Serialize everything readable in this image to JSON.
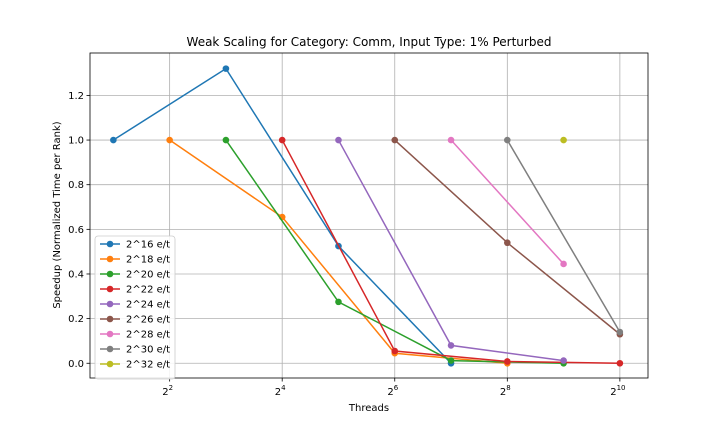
{
  "chart_data": {
    "type": "line",
    "title": "Weak Scaling for Category: Comm, Input Type: 1% Perturbed",
    "xlabel": "Threads",
    "ylabel": "Speedup (Normalized Time per Rank)",
    "x_scale": "log2",
    "xlim": [
      1.5,
      1448
    ],
    "ylim": [
      -0.066,
      1.39
    ],
    "grid": true,
    "legend_position": "lower-left",
    "x_ticks": [
      {
        "value": 4,
        "base": "2",
        "exp": "2"
      },
      {
        "value": 16,
        "base": "2",
        "exp": "4"
      },
      {
        "value": 64,
        "base": "2",
        "exp": "6"
      },
      {
        "value": 256,
        "base": "2",
        "exp": "8"
      },
      {
        "value": 1024,
        "base": "2",
        "exp": "10"
      }
    ],
    "y_ticks": [
      "0.0",
      "0.2",
      "0.4",
      "0.6",
      "0.8",
      "1.0",
      "1.2"
    ],
    "series": [
      {
        "name": "2^16 e/t",
        "color": "#1f77b4",
        "x": [
          2,
          8,
          32,
          128
        ],
        "y": [
          1.0,
          1.32,
          0.525,
          0.0
        ]
      },
      {
        "name": "2^18 e/t",
        "color": "#ff7f0e",
        "x": [
          4,
          16,
          64,
          256
        ],
        "y": [
          1.0,
          0.655,
          0.045,
          0.0
        ]
      },
      {
        "name": "2^20 e/t",
        "color": "#2ca02c",
        "x": [
          8,
          32,
          128,
          512
        ],
        "y": [
          1.0,
          0.275,
          0.012,
          0.0
        ]
      },
      {
        "name": "2^22 e/t",
        "color": "#d62728",
        "x": [
          16,
          64,
          256,
          1024
        ],
        "y": [
          1.0,
          0.055,
          0.008,
          0.0
        ]
      },
      {
        "name": "2^24 e/t",
        "color": "#9467bd",
        "x": [
          32,
          128,
          512
        ],
        "y": [
          1.0,
          0.08,
          0.012
        ]
      },
      {
        "name": "2^26 e/t",
        "color": "#8c564b",
        "x": [
          64,
          256,
          1024
        ],
        "y": [
          1.0,
          0.54,
          0.13
        ]
      },
      {
        "name": "2^28 e/t",
        "color": "#e377c2",
        "x": [
          128,
          512
        ],
        "y": [
          1.0,
          0.445
        ]
      },
      {
        "name": "2^30 e/t",
        "color": "#7f7f7f",
        "x": [
          256,
          1024
        ],
        "y": [
          1.0,
          0.14
        ]
      },
      {
        "name": "2^32 e/t",
        "color": "#bcbd22",
        "x": [
          512
        ],
        "y": [
          1.0
        ]
      }
    ]
  }
}
